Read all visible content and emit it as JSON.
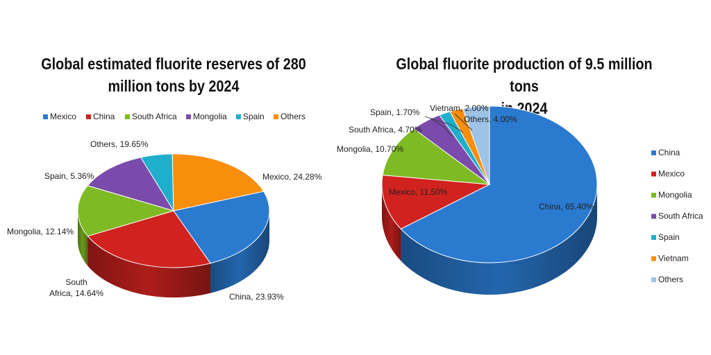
{
  "colors": {
    "blue": "#2A7AD0",
    "red": "#D0231F",
    "green": "#7EBA23",
    "purple": "#7A4BAA",
    "cyan": "#1FAECB",
    "orange": "#F98E0B",
    "lightblue": "#9DC3E6"
  },
  "chart_data": [
    {
      "type": "pie",
      "title": "Global estimated fluorite reserves of 280 million tons by 2024",
      "title_lines": [
        "Global estimated fluorite reserves of 280",
        "million tons by 2024"
      ],
      "legend_position": "top",
      "categories": [
        "Mexico",
        "China",
        "South Africa",
        "Mongolia",
        "Spain",
        "Others"
      ],
      "values": [
        24.28,
        23.93,
        14.64,
        12.14,
        5.36,
        19.65
      ],
      "data_labels": [
        "Mexico, 24.28%",
        "China, 23.93%",
        "South Africa, 14.64%",
        "Mongolia, 12.14%",
        "Spain, 5.36%",
        "Others, 19.65%"
      ],
      "colors": [
        "#2A7AD0",
        "#D0231F",
        "#7EBA23",
        "#7A4BAA",
        "#1FAECB",
        "#F98E0B"
      ]
    },
    {
      "type": "pie",
      "title": "Global fluorite production of 9.5 million tons in 2024",
      "title_lines": [
        "Global fluorite production of 9.5 million tons",
        "in 2024"
      ],
      "legend_position": "right",
      "categories": [
        "China",
        "Mexico",
        "Mongolia",
        "South Africa",
        "Spain",
        "Vietnam",
        "Others"
      ],
      "values": [
        65.4,
        11.5,
        10.7,
        4.7,
        1.7,
        2.0,
        4.0
      ],
      "data_labels": [
        "China, 65.40%",
        "Mexico, 11.50%",
        "Mongolia, 10.70%",
        "South Africa, 4.70%",
        "Spain, 1.70%",
        "Vietnam, 2.00%",
        "Others, 4.00%"
      ],
      "colors": [
        "#2A7AD0",
        "#D0231F",
        "#7EBA23",
        "#7A4BAA",
        "#1FAECB",
        "#F98E0B",
        "#9DC3E6"
      ]
    }
  ]
}
